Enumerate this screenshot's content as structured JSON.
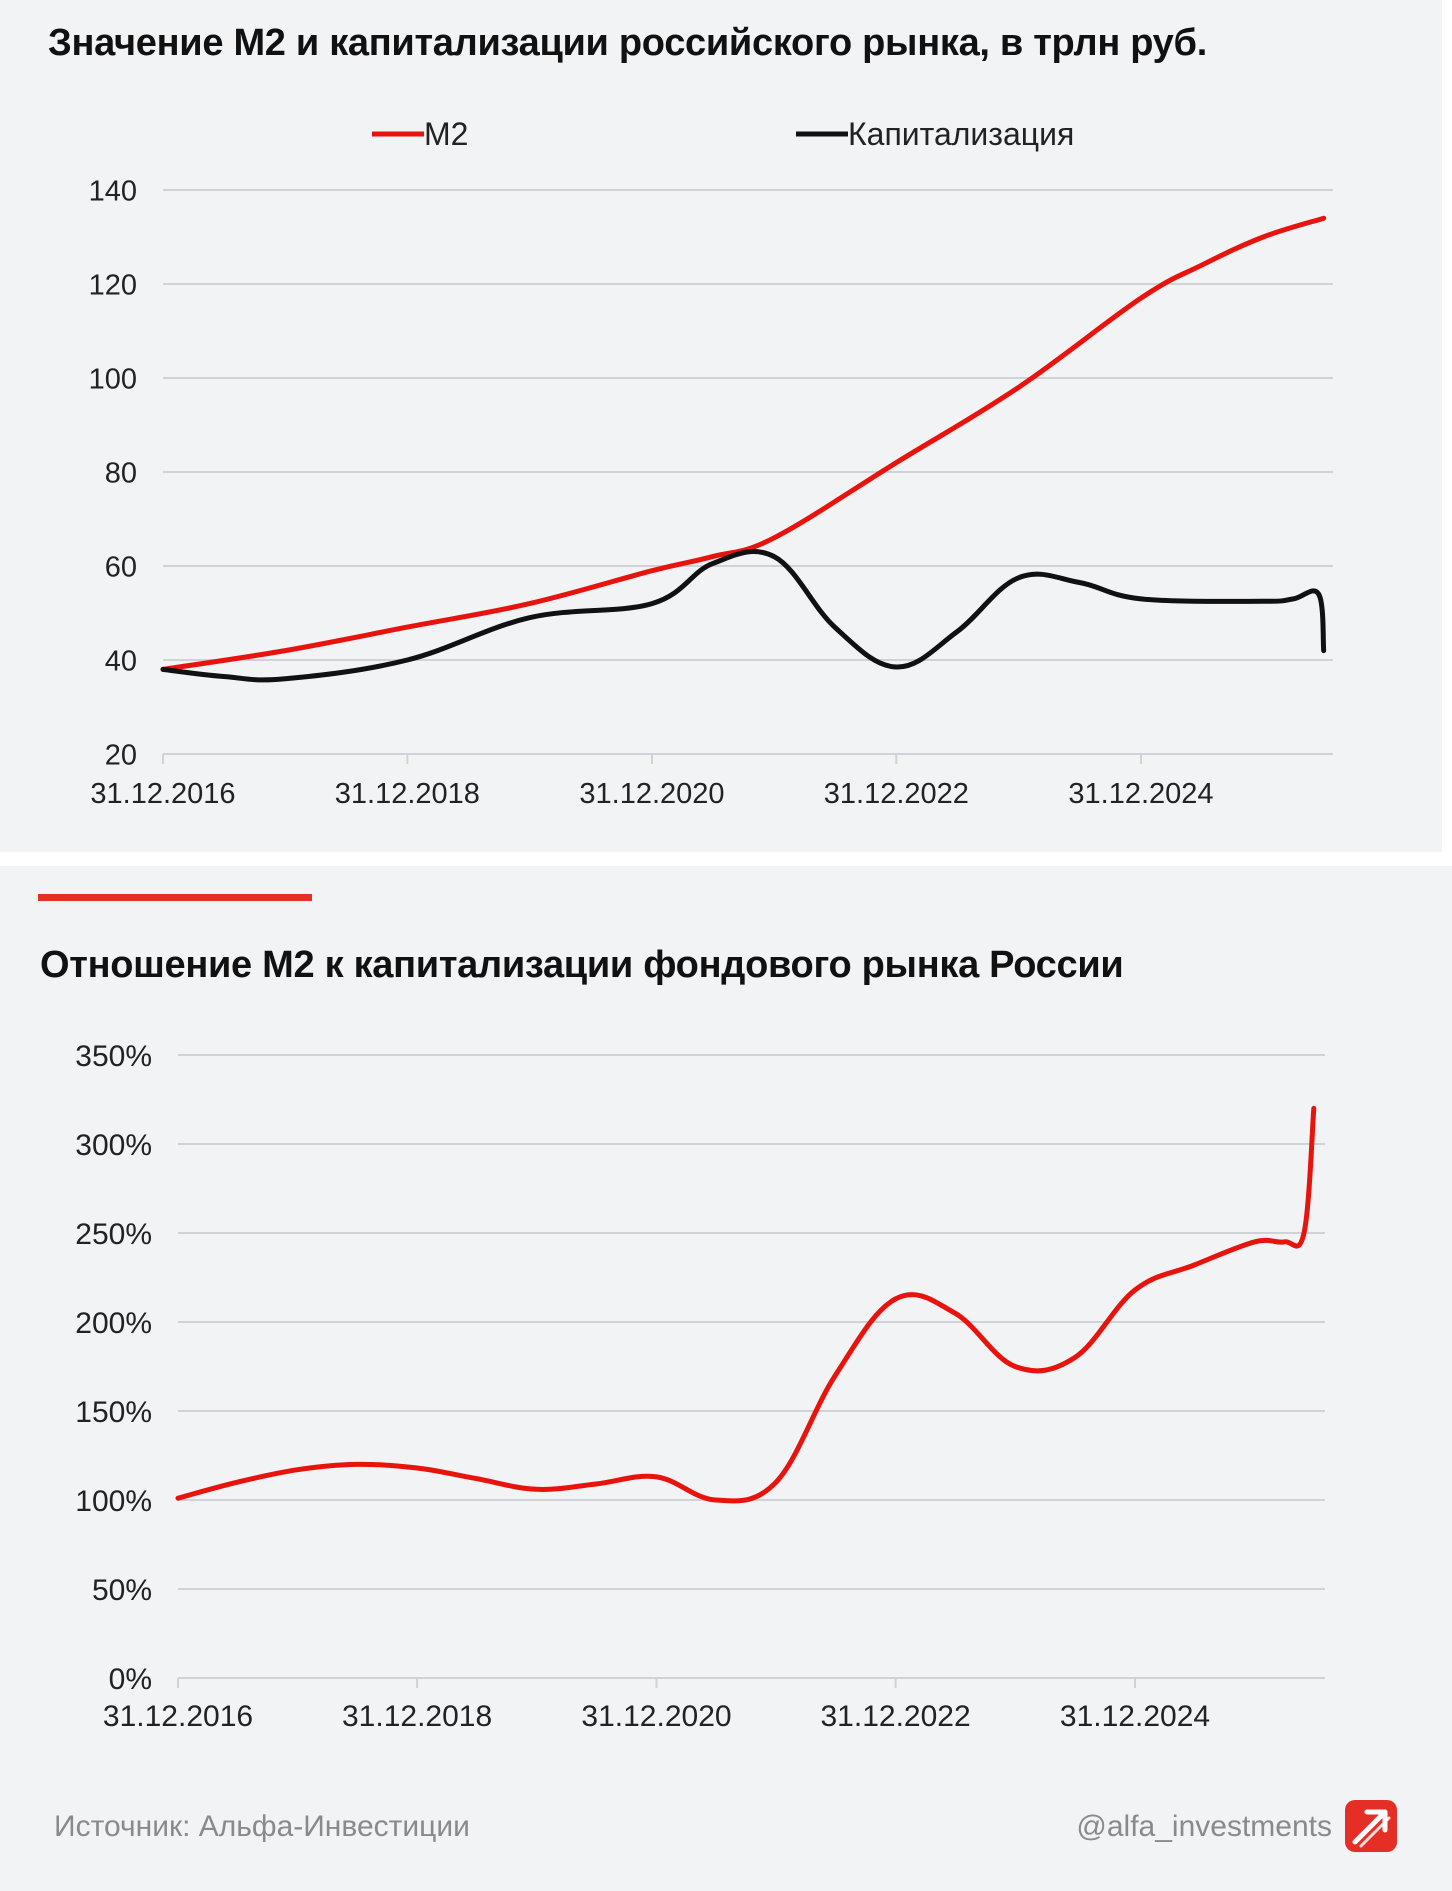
{
  "charts": [
    {
      "id": "chart1",
      "title": "Значение М2 и капитализации российского рынка, в трлн руб.",
      "legend": [
        "М2",
        "Капитализация"
      ],
      "y_ticks": [
        "140",
        "120",
        "100",
        "80",
        "60",
        "40",
        "20"
      ],
      "x_ticks": [
        "31.12.2016",
        "31.12.2018",
        "31.12.2020",
        "31.12.2022",
        "31.12.2024"
      ]
    },
    {
      "id": "chart2",
      "title": "Отношение М2 к капитализации фондового рынка России",
      "y_ticks": [
        "350%",
        "300%",
        "250%",
        "200%",
        "150%",
        "100%",
        "50%",
        "0%"
      ],
      "x_ticks": [
        "31.12.2016",
        "31.12.2018",
        "31.12.2020",
        "31.12.2022",
        "31.12.2024"
      ]
    }
  ],
  "footer": {
    "source": "Источник: Альфа-Инвестиции",
    "handle": "@alfa_investments",
    "logo_icon": "alfa-logo-arrow-icon"
  },
  "colors": {
    "m2": "#e8130c",
    "cap": "#111111",
    "grid": "#cfd2d6",
    "accent": "#e52e25"
  },
  "chart_data": [
    {
      "type": "line",
      "title": "Значение М2 и капитализации российского рынка, в трлн руб.",
      "x_labels": [
        "31.12.2016",
        "31.12.2018",
        "31.12.2020",
        "31.12.2022",
        "31.12.2024"
      ],
      "ylim": [
        20,
        140
      ],
      "y_ticks": [
        20,
        40,
        60,
        80,
        100,
        120,
        140
      ],
      "grid": true,
      "legend_position": "top",
      "series": [
        {
          "name": "М2",
          "color": "#e8130c",
          "x": [
            "2016-12-31",
            "2017-12-31",
            "2018-12-31",
            "2019-12-31",
            "2020-12-31",
            "2021-06-30",
            "2021-12-31",
            "2022-12-31",
            "2023-12-31",
            "2024-12-31",
            "2025-06-30",
            "2025-12-31",
            "2026-06-30"
          ],
          "y": [
            38,
            42,
            47,
            52,
            59,
            62,
            66,
            82,
            98,
            117,
            124,
            130,
            134
          ]
        },
        {
          "name": "Капитализация",
          "color": "#111111",
          "x": [
            "2016-12-31",
            "2017-06-30",
            "2017-12-31",
            "2018-12-31",
            "2019-12-31",
            "2020-12-31",
            "2021-06-30",
            "2021-12-31",
            "2022-06-30",
            "2022-12-31",
            "2023-06-30",
            "2023-12-31",
            "2024-06-30",
            "2024-12-31",
            "2025-12-31",
            "2026-03-31",
            "2026-06-15",
            "2026-06-30"
          ],
          "y": [
            38,
            36.5,
            36,
            40,
            49,
            52,
            60.5,
            62,
            47,
            38.5,
            46,
            57.5,
            56.5,
            53,
            52.5,
            53,
            54,
            42
          ]
        }
      ]
    },
    {
      "type": "line",
      "title": "Отношение М2 к капитализации фондового рынка России",
      "x_labels": [
        "31.12.2016",
        "31.12.2018",
        "31.12.2020",
        "31.12.2022",
        "31.12.2024"
      ],
      "ylim": [
        0,
        350
      ],
      "y_ticks": [
        0,
        50,
        100,
        150,
        200,
        250,
        300,
        350
      ],
      "unit": "%",
      "grid": true,
      "series": [
        {
          "color": "#e8130c",
          "x": [
            "2016-12-31",
            "2017-06-30",
            "2017-12-31",
            "2018-06-30",
            "2018-12-31",
            "2019-06-30",
            "2019-12-31",
            "2020-06-30",
            "2020-12-31",
            "2021-06-30",
            "2021-12-31",
            "2022-06-30",
            "2022-12-31",
            "2023-06-30",
            "2023-12-31",
            "2024-06-30",
            "2024-12-31",
            "2025-06-30",
            "2025-12-31",
            "2026-03-31",
            "2026-05-31",
            "2026-06-30"
          ],
          "y": [
            101,
            110,
            117,
            120,
            118,
            112,
            106,
            109,
            113,
            100,
            110,
            170,
            213,
            205,
            175,
            180,
            218,
            232,
            245,
            245,
            250,
            320
          ]
        }
      ]
    }
  ]
}
